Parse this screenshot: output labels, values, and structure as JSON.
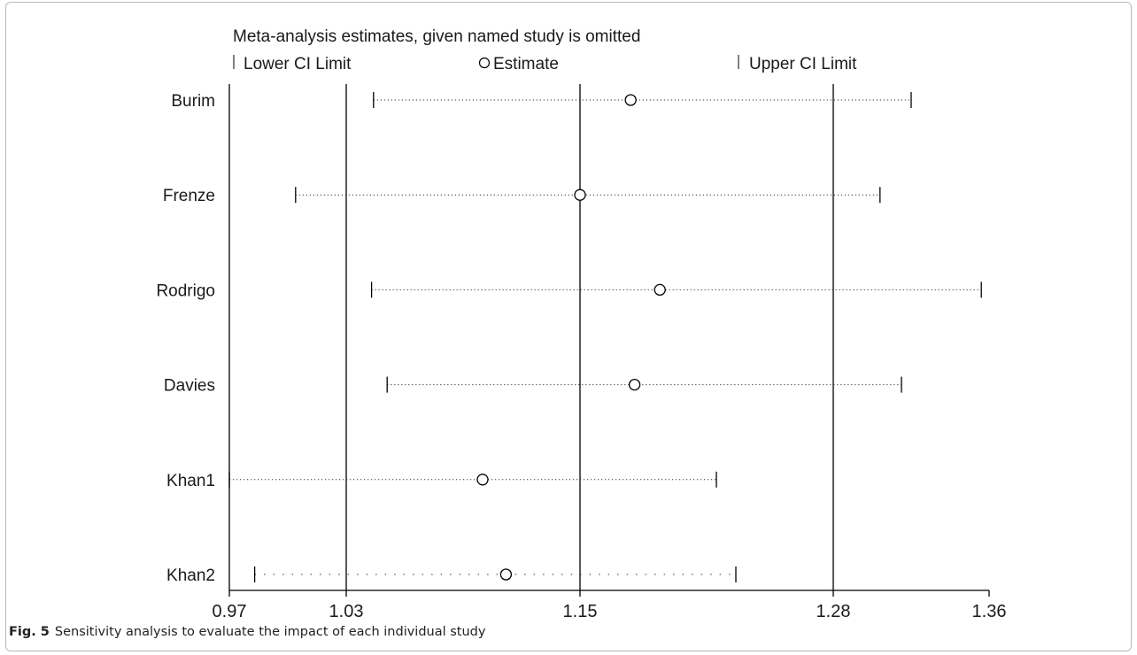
{
  "chart_data": {
    "type": "forest",
    "title": "Meta-analysis estimates, given named study is omitted",
    "legend": {
      "lower": "Lower CI Limit",
      "estimate": "Estimate",
      "upper": "Upper CI Limit"
    },
    "xlim": [
      0.97,
      1.36
    ],
    "xticks": [
      0.97,
      1.03,
      1.15,
      1.28,
      1.36
    ],
    "xtick_labels": [
      "0.97",
      "1.03",
      "1.15",
      "1.28",
      "1.36"
    ],
    "reference_lines": [
      1.03,
      1.15,
      1.28
    ],
    "studies": [
      {
        "name": "Burim",
        "lower": 1.044,
        "estimate": 1.176,
        "upper": 1.32
      },
      {
        "name": "Frenze",
        "lower": 1.004,
        "estimate": 1.15,
        "upper": 1.304
      },
      {
        "name": "Rodrigo",
        "lower": 1.043,
        "estimate": 1.191,
        "upper": 1.356
      },
      {
        "name": "Davies",
        "lower": 1.051,
        "estimate": 1.178,
        "upper": 1.315
      },
      {
        "name": "Khan1",
        "lower": 0.97,
        "estimate": 1.1,
        "upper": 1.22
      },
      {
        "name": "Khan2",
        "lower": 0.983,
        "estimate": 1.112,
        "upper": 1.23
      }
    ]
  },
  "caption": {
    "label": "Fig. 5",
    "text": "Sensitivity analysis to evaluate the impact of each individual study"
  }
}
